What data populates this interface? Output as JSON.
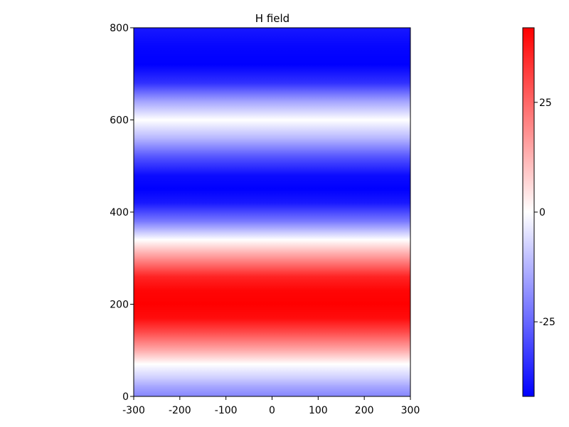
{
  "chart_data": {
    "type": "heatmap",
    "title": "H field",
    "xlabel": "",
    "ylabel": "",
    "x_range": [
      -300,
      300
    ],
    "y_range": [
      0,
      800
    ],
    "x_ticks": [
      -300,
      -200,
      -100,
      0,
      100,
      200,
      300
    ],
    "y_ticks": [
      0,
      200,
      400,
      600,
      800
    ],
    "x_tick_labels": [
      "-300",
      "-200",
      "-100",
      "0",
      "100",
      "200",
      "300"
    ],
    "y_tick_labels": [
      "0",
      "200",
      "400",
      "600",
      "800"
    ],
    "colorscale": {
      "range": [
        -42,
        42
      ],
      "low_color": "#0000ff",
      "mid_color": "#ffffff",
      "high_color": "#ff0000",
      "ticks": [
        25,
        0,
        -25
      ],
      "tick_labels": [
        "25",
        "0",
        "-25"
      ]
    },
    "field_profile": {
      "varies_along": "y",
      "y": [
        0,
        20,
        40,
        70,
        100,
        140,
        170,
        200,
        230,
        260,
        300,
        340,
        380,
        420,
        450,
        480,
        520,
        560,
        600,
        640,
        680,
        720,
        760,
        800
      ],
      "values": [
        -20,
        -15,
        -8,
        0,
        14,
        30,
        40,
        42,
        41,
        36,
        18,
        0,
        -22,
        -38,
        -42,
        -40,
        -28,
        -12,
        0,
        -15,
        -34,
        -42,
        -41,
        -38
      ]
    },
    "grid": false,
    "colorbar_position": "right"
  }
}
